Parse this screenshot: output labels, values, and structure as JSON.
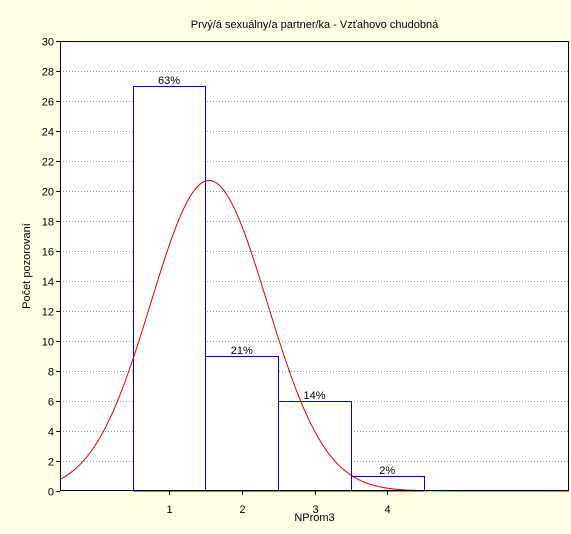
{
  "chart_data": {
    "type": "bar",
    "title": "Prvý/á sexuálny/a partner/ka - Vzťahovo chudobná",
    "xlabel": "NProm3",
    "ylabel": "Počet pozorovaní",
    "x_ticks": [
      "1",
      "2",
      "3",
      "4"
    ],
    "x_range": [
      -0.5,
      6.5
    ],
    "ylim": [
      0,
      30
    ],
    "y_ticks": [
      0,
      2,
      4,
      6,
      8,
      10,
      12,
      14,
      16,
      18,
      20,
      22,
      24,
      26,
      28,
      30
    ],
    "grid": true,
    "bars": [
      {
        "x_from": 0.5,
        "x_to": 1.5,
        "value": 27,
        "label": "63%"
      },
      {
        "x_from": 1.5,
        "x_to": 2.5,
        "value": 9,
        "label": "21%"
      },
      {
        "x_from": 2.5,
        "x_to": 3.5,
        "value": 6,
        "label": "14%"
      },
      {
        "x_from": 3.5,
        "x_to": 4.5,
        "value": 1,
        "label": "2%"
      }
    ],
    "normal_curve": {
      "mean": 1.55,
      "sd": 0.8,
      "peak": 20.7
    },
    "colors": {
      "background": "#ffffe6",
      "plot_background": "#ffffff",
      "bar_edge": "#0000cc",
      "curve": "#e00000",
      "grid": "#9a9a9a"
    }
  }
}
